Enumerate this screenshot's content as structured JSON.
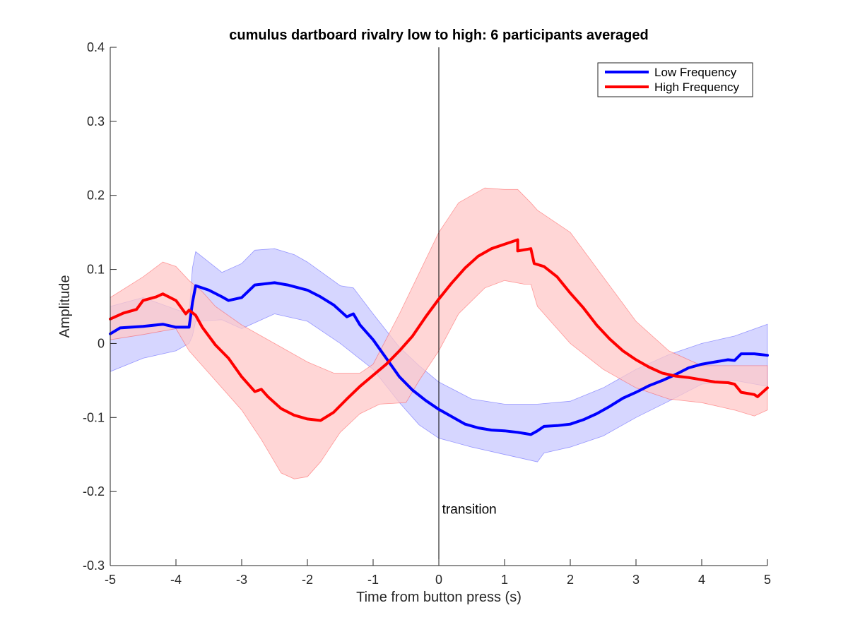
{
  "chart_data": {
    "type": "line",
    "title": "cumulus dartboard rivalry low to high: 6 participants averaged",
    "xlabel": "Time from button press (s)",
    "ylabel": "Amplitude",
    "xlim": [
      -5,
      5
    ],
    "ylim": [
      -0.3,
      0.4
    ],
    "xticks": [
      -5,
      -4,
      -3,
      -2,
      -1,
      0,
      1,
      2,
      3,
      4,
      5
    ],
    "xtick_labels": [
      "-5",
      "-4",
      "-3",
      "-2",
      "-1",
      "0",
      "1",
      "2",
      "3",
      "4",
      "5"
    ],
    "yticks": [
      -0.3,
      -0.2,
      -0.1,
      0,
      0.1,
      0.2,
      0.3,
      0.4
    ],
    "ytick_labels": [
      "-0.3",
      "-0.2",
      "-0.1",
      "0",
      "0.1",
      "0.2",
      "0.3",
      "0.4"
    ],
    "grid": false,
    "legend_position": "top-right",
    "annotations": [
      {
        "text": "transition",
        "x": 0.05,
        "y": -0.23,
        "vline_x": 0
      }
    ],
    "series": [
      {
        "name": "Low Frequency",
        "color": "#0000ff",
        "band_color": "#c8c8ff",
        "points": [
          [
            -5.0,
            0.013
          ],
          [
            -4.85,
            0.021
          ],
          [
            -4.5,
            0.023
          ],
          [
            -4.2,
            0.026
          ],
          [
            -4.0,
            0.022
          ],
          [
            -3.8,
            0.022
          ],
          [
            -3.75,
            0.055
          ],
          [
            -3.7,
            0.078
          ],
          [
            -3.5,
            0.072
          ],
          [
            -3.3,
            0.063
          ],
          [
            -3.2,
            0.058
          ],
          [
            -3.0,
            0.062
          ],
          [
            -2.8,
            0.079
          ],
          [
            -2.5,
            0.082
          ],
          [
            -2.3,
            0.079
          ],
          [
            -2.0,
            0.072
          ],
          [
            -1.8,
            0.063
          ],
          [
            -1.6,
            0.052
          ],
          [
            -1.4,
            0.036
          ],
          [
            -1.3,
            0.04
          ],
          [
            -1.2,
            0.025
          ],
          [
            -1.0,
            0.005
          ],
          [
            -0.8,
            -0.02
          ],
          [
            -0.6,
            -0.045
          ],
          [
            -0.4,
            -0.063
          ],
          [
            -0.2,
            -0.077
          ],
          [
            0.0,
            -0.089
          ],
          [
            0.2,
            -0.099
          ],
          [
            0.4,
            -0.109
          ],
          [
            0.6,
            -0.114
          ],
          [
            0.8,
            -0.117
          ],
          [
            1.0,
            -0.118
          ],
          [
            1.2,
            -0.12
          ],
          [
            1.4,
            -0.123
          ],
          [
            1.5,
            -0.118
          ],
          [
            1.6,
            -0.112
          ],
          [
            1.8,
            -0.111
          ],
          [
            2.0,
            -0.109
          ],
          [
            2.2,
            -0.103
          ],
          [
            2.4,
            -0.095
          ],
          [
            2.6,
            -0.085
          ],
          [
            2.8,
            -0.074
          ],
          [
            3.0,
            -0.066
          ],
          [
            3.2,
            -0.057
          ],
          [
            3.4,
            -0.05
          ],
          [
            3.6,
            -0.042
          ],
          [
            3.8,
            -0.033
          ],
          [
            4.0,
            -0.028
          ],
          [
            4.2,
            -0.025
          ],
          [
            4.4,
            -0.022
          ],
          [
            4.5,
            -0.023
          ],
          [
            4.6,
            -0.014
          ],
          [
            4.8,
            -0.014
          ],
          [
            5.0,
            -0.016
          ]
        ],
        "upper": [
          [
            -5.0,
            0.05
          ],
          [
            -4.5,
            0.062
          ],
          [
            -4.0,
            0.046
          ],
          [
            -3.8,
            0.04
          ],
          [
            -3.75,
            0.102
          ],
          [
            -3.7,
            0.124
          ],
          [
            -3.5,
            0.11
          ],
          [
            -3.3,
            0.096
          ],
          [
            -3.0,
            0.108
          ],
          [
            -2.8,
            0.126
          ],
          [
            -2.5,
            0.128
          ],
          [
            -2.2,
            0.12
          ],
          [
            -2.0,
            0.11
          ],
          [
            -1.5,
            0.078
          ],
          [
            -1.3,
            0.075
          ],
          [
            -1.0,
            0.04
          ],
          [
            -0.6,
            -0.005
          ],
          [
            -0.3,
            -0.03
          ],
          [
            0.0,
            -0.052
          ],
          [
            0.5,
            -0.075
          ],
          [
            1.0,
            -0.082
          ],
          [
            1.5,
            -0.082
          ],
          [
            2.0,
            -0.078
          ],
          [
            2.5,
            -0.06
          ],
          [
            3.0,
            -0.035
          ],
          [
            3.5,
            -0.015
          ],
          [
            4.0,
            0.0
          ],
          [
            4.5,
            0.01
          ],
          [
            5.0,
            0.026
          ]
        ],
        "lower": [
          [
            -5.0,
            -0.038
          ],
          [
            -4.5,
            -0.02
          ],
          [
            -4.0,
            -0.01
          ],
          [
            -3.8,
            0.0
          ],
          [
            -3.75,
            0.01
          ],
          [
            -3.7,
            0.03
          ],
          [
            -3.3,
            0.032
          ],
          [
            -3.0,
            0.02
          ],
          [
            -2.5,
            0.04
          ],
          [
            -2.0,
            0.03
          ],
          [
            -1.5,
            0.0
          ],
          [
            -1.0,
            -0.035
          ],
          [
            -0.6,
            -0.08
          ],
          [
            -0.3,
            -0.11
          ],
          [
            0.0,
            -0.128
          ],
          [
            0.5,
            -0.14
          ],
          [
            1.0,
            -0.15
          ],
          [
            1.5,
            -0.16
          ],
          [
            1.6,
            -0.148
          ],
          [
            2.0,
            -0.14
          ],
          [
            2.5,
            -0.125
          ],
          [
            3.0,
            -0.1
          ],
          [
            3.5,
            -0.078
          ],
          [
            4.0,
            -0.055
          ],
          [
            4.5,
            -0.05
          ],
          [
            5.0,
            -0.058
          ]
        ]
      },
      {
        "name": "High Frequency",
        "color": "#ff0000",
        "band_color": "#ffc8c8",
        "points": [
          [
            -5.0,
            0.033
          ],
          [
            -4.8,
            0.041
          ],
          [
            -4.6,
            0.046
          ],
          [
            -4.5,
            0.058
          ],
          [
            -4.3,
            0.063
          ],
          [
            -4.2,
            0.067
          ],
          [
            -4.0,
            0.058
          ],
          [
            -3.85,
            0.04
          ],
          [
            -3.8,
            0.045
          ],
          [
            -3.7,
            0.038
          ],
          [
            -3.6,
            0.022
          ],
          [
            -3.4,
            -0.002
          ],
          [
            -3.2,
            -0.02
          ],
          [
            -3.0,
            -0.045
          ],
          [
            -2.8,
            -0.065
          ],
          [
            -2.7,
            -0.062
          ],
          [
            -2.6,
            -0.072
          ],
          [
            -2.4,
            -0.088
          ],
          [
            -2.2,
            -0.097
          ],
          [
            -2.0,
            -0.102
          ],
          [
            -1.8,
            -0.104
          ],
          [
            -1.6,
            -0.093
          ],
          [
            -1.4,
            -0.075
          ],
          [
            -1.2,
            -0.058
          ],
          [
            -1.0,
            -0.043
          ],
          [
            -0.8,
            -0.028
          ],
          [
            -0.6,
            -0.01
          ],
          [
            -0.4,
            0.01
          ],
          [
            -0.2,
            0.036
          ],
          [
            0.0,
            0.06
          ],
          [
            0.2,
            0.082
          ],
          [
            0.4,
            0.102
          ],
          [
            0.6,
            0.118
          ],
          [
            0.8,
            0.128
          ],
          [
            1.0,
            0.134
          ],
          [
            1.2,
            0.14
          ],
          [
            1.2,
            0.125
          ],
          [
            1.4,
            0.128
          ],
          [
            1.45,
            0.108
          ],
          [
            1.6,
            0.104
          ],
          [
            1.8,
            0.09
          ],
          [
            2.0,
            0.068
          ],
          [
            2.2,
            0.048
          ],
          [
            2.4,
            0.025
          ],
          [
            2.6,
            0.006
          ],
          [
            2.8,
            -0.01
          ],
          [
            3.0,
            -0.022
          ],
          [
            3.2,
            -0.032
          ],
          [
            3.4,
            -0.04
          ],
          [
            3.6,
            -0.044
          ],
          [
            3.8,
            -0.046
          ],
          [
            4.0,
            -0.049
          ],
          [
            4.2,
            -0.052
          ],
          [
            4.4,
            -0.053
          ],
          [
            4.5,
            -0.055
          ],
          [
            4.6,
            -0.066
          ],
          [
            4.8,
            -0.069
          ],
          [
            4.85,
            -0.072
          ],
          [
            5.0,
            -0.06
          ]
        ],
        "upper": [
          [
            -5.0,
            0.062
          ],
          [
            -4.5,
            0.09
          ],
          [
            -4.2,
            0.11
          ],
          [
            -4.0,
            0.104
          ],
          [
            -3.8,
            0.085
          ],
          [
            -3.6,
            0.07
          ],
          [
            -3.4,
            0.05
          ],
          [
            -3.0,
            0.025
          ],
          [
            -2.5,
            0.0
          ],
          [
            -2.0,
            -0.025
          ],
          [
            -1.6,
            -0.04
          ],
          [
            -1.2,
            -0.04
          ],
          [
            -1.0,
            -0.028
          ],
          [
            -0.6,
            0.04
          ],
          [
            -0.3,
            0.095
          ],
          [
            0.0,
            0.15
          ],
          [
            0.3,
            0.19
          ],
          [
            0.7,
            0.21
          ],
          [
            1.0,
            0.208
          ],
          [
            1.2,
            0.208
          ],
          [
            1.4,
            0.19
          ],
          [
            1.5,
            0.18
          ],
          [
            2.0,
            0.15
          ],
          [
            2.5,
            0.09
          ],
          [
            3.0,
            0.03
          ],
          [
            3.5,
            -0.01
          ],
          [
            4.0,
            -0.03
          ],
          [
            4.5,
            -0.03
          ],
          [
            5.0,
            -0.03
          ]
        ],
        "lower": [
          [
            -5.0,
            0.005
          ],
          [
            -4.5,
            0.012
          ],
          [
            -4.0,
            0.02
          ],
          [
            -3.8,
            -0.01
          ],
          [
            -3.6,
            -0.03
          ],
          [
            -3.3,
            -0.06
          ],
          [
            -3.0,
            -0.09
          ],
          [
            -2.7,
            -0.13
          ],
          [
            -2.4,
            -0.175
          ],
          [
            -2.2,
            -0.183
          ],
          [
            -2.0,
            -0.18
          ],
          [
            -1.8,
            -0.16
          ],
          [
            -1.5,
            -0.12
          ],
          [
            -1.2,
            -0.095
          ],
          [
            -0.9,
            -0.082
          ],
          [
            -0.5,
            -0.08
          ],
          [
            -0.3,
            -0.05
          ],
          [
            0.0,
            -0.01
          ],
          [
            0.3,
            0.04
          ],
          [
            0.7,
            0.075
          ],
          [
            1.0,
            0.085
          ],
          [
            1.3,
            0.08
          ],
          [
            1.4,
            0.08
          ],
          [
            1.5,
            0.05
          ],
          [
            2.0,
            0.0
          ],
          [
            2.5,
            -0.035
          ],
          [
            3.0,
            -0.06
          ],
          [
            3.5,
            -0.075
          ],
          [
            4.0,
            -0.08
          ],
          [
            4.5,
            -0.09
          ],
          [
            4.8,
            -0.098
          ],
          [
            5.0,
            -0.09
          ]
        ]
      }
    ]
  }
}
